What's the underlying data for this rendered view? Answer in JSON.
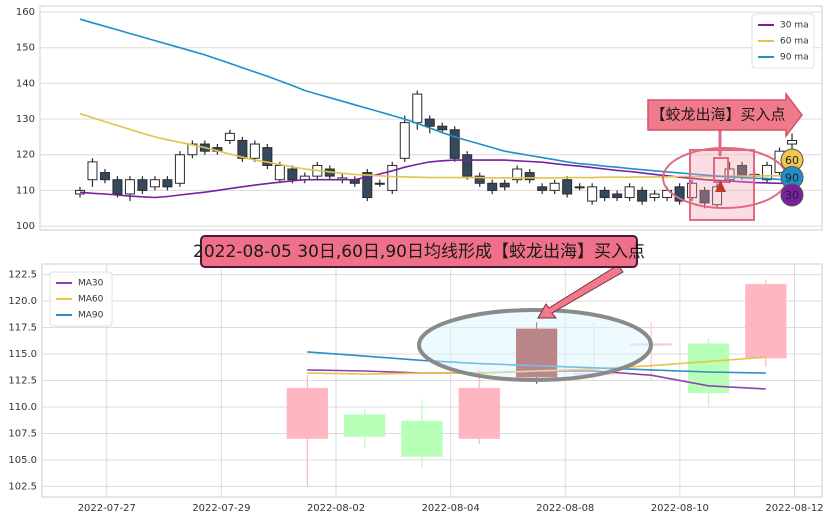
{
  "chart_data": [
    {
      "type": "candlestick",
      "xlim": [
        -3.2,
        59.4
      ],
      "ylim": [
        98.9,
        161.7
      ],
      "yticks": [
        100,
        110,
        120,
        130,
        140,
        150,
        160
      ],
      "grid": true,
      "up_color": "#ffffff",
      "down_color": "#34495e",
      "edge_color": "#2b2b2b",
      "legend": "upper right",
      "candles": {
        "open": [
          109,
          113,
          115,
          113,
          109,
          113,
          111,
          113,
          112,
          120,
          123,
          122,
          124,
          124,
          119,
          122,
          113,
          116,
          113,
          114,
          116,
          113,
          113,
          115,
          112,
          110,
          119,
          129,
          130,
          128,
          127,
          120,
          114,
          112,
          112,
          113,
          115,
          111,
          110,
          113,
          111,
          107,
          110,
          109,
          108,
          110,
          108,
          108,
          111,
          108,
          110,
          106,
          113,
          117,
          114,
          113,
          115,
          123
        ],
        "close": [
          110,
          118,
          113,
          109,
          113,
          110,
          113,
          111,
          120,
          123,
          121,
          121,
          126,
          119,
          123,
          117,
          117,
          113,
          114,
          117,
          114,
          113.5,
          112,
          108,
          112,
          117,
          129,
          137,
          128,
          127,
          119,
          114,
          112,
          110,
          111,
          116,
          113,
          110,
          112,
          109,
          111,
          111,
          108,
          108,
          111,
          107,
          109,
          110,
          107,
          112,
          106.5,
          111,
          116,
          114,
          114.5,
          117,
          121,
          124
        ],
        "high": [
          111,
          119,
          116,
          114,
          114,
          114,
          114,
          114,
          121,
          124,
          124,
          123,
          127,
          125,
          124,
          123,
          118,
          117,
          115,
          118,
          117,
          115,
          114,
          116,
          113,
          118,
          131,
          138,
          131,
          129,
          128,
          121,
          115,
          113,
          113,
          117,
          116,
          112,
          113,
          114,
          112,
          112,
          111,
          110,
          112,
          111,
          110,
          111,
          112,
          113,
          111,
          112,
          118,
          118,
          116,
          118,
          122,
          126
        ],
        "low": [
          108,
          111,
          112,
          108,
          107,
          109,
          110,
          110,
          111,
          119,
          120,
          120,
          123,
          118,
          118,
          116,
          112,
          112,
          112,
          113,
          113,
          112,
          111,
          107,
          111,
          109,
          118,
          127,
          126,
          126,
          118,
          113,
          111,
          109,
          110,
          112,
          112,
          109,
          109,
          108,
          110,
          106,
          107,
          107,
          107,
          106,
          107,
          107,
          106,
          107,
          105,
          105,
          112,
          113,
          113,
          112,
          114,
          121
        ]
      },
      "series": [
        {
          "name": "30 ma",
          "color": "#7b1fa2",
          "values": [
            109.5,
            109.2,
            109,
            108.7,
            108.4,
            108.2,
            108,
            108.3,
            108.7,
            109.1,
            109.5,
            110,
            110.5,
            111,
            111.5,
            111.9,
            112.3,
            112.7,
            113,
            113,
            113,
            113,
            113,
            113.8,
            114.6,
            115.5,
            116.5,
            117.3,
            118,
            118.3,
            118.5,
            118.5,
            118.5,
            118.5,
            118.5,
            118.3,
            118.1,
            117.9,
            117.5,
            117.1,
            116.8,
            116.4,
            116,
            115.6,
            115.3,
            114.9,
            114.5,
            114.1,
            113.7,
            113.4,
            113,
            112.8,
            112.6,
            112.4,
            112.2,
            112.1,
            112,
            112
          ]
        },
        {
          "name": "60 ma",
          "color": "#e3c34b",
          "values": [
            131.5,
            130.4,
            129.3,
            128.2,
            127.1,
            126,
            125,
            124.2,
            123.5,
            122.8,
            122,
            121.1,
            120.2,
            119.3,
            118.5,
            117.9,
            117.3,
            116.6,
            116,
            115.6,
            115.2,
            114.8,
            114.5,
            114.3,
            114.1,
            113.9,
            113.8,
            113.7,
            113.6,
            113.6,
            113.6,
            113.6,
            113.6,
            113.5,
            113.5,
            113.5,
            113.5,
            113.5,
            113.5,
            113.6,
            113.6,
            113.6,
            113.7,
            113.7,
            113.7,
            113.8,
            113.8,
            113.8,
            113.9,
            113.9,
            113.9,
            113.9,
            114,
            114,
            114,
            114.1,
            114.1,
            114.2
          ]
        },
        {
          "name": "90 ma",
          "color": "#1f8fc8",
          "values": [
            158,
            157,
            156,
            155,
            154,
            153,
            152,
            151,
            150,
            149,
            148,
            146.8,
            145.6,
            144.4,
            143.2,
            142,
            140.7,
            139.4,
            138,
            137,
            136,
            135,
            134,
            133,
            132,
            131,
            130,
            128.8,
            127.5,
            126.2,
            125,
            124,
            123,
            122,
            121,
            120.4,
            119.8,
            119.2,
            118.6,
            118,
            117.5,
            117.2,
            116.8,
            116.5,
            116.1,
            115.8,
            115.5,
            115.2,
            114.9,
            114.6,
            114.3,
            114,
            113.8,
            113.6,
            113.4,
            113.3,
            113.1,
            113
          ]
        }
      ],
      "callout": "【蛟龙出海】买入点",
      "badges": [
        {
          "label": "60",
          "color": "#f0c850"
        },
        {
          "label": "90",
          "color": "#1f8fc8"
        },
        {
          "label": "30",
          "color": "#7b1fa2"
        }
      ]
    },
    {
      "type": "candlestick",
      "xlim": [
        -1.13,
        12.48
      ],
      "ylim": [
        101.5,
        123.5
      ],
      "xticks": [
        {
          "value": 0,
          "label": "2022-07-27"
        },
        {
          "value": 2,
          "label": "2022-07-29"
        },
        {
          "value": 4,
          "label": "2022-08-02"
        },
        {
          "value": 6,
          "label": "2022-08-04"
        },
        {
          "value": 8,
          "label": "2022-08-08"
        },
        {
          "value": 10,
          "label": "2022-08-10"
        },
        {
          "value": 12,
          "label": "2022-08-12"
        }
      ],
      "yticks": [
        {
          "value": 102.5,
          "label": "102.5"
        },
        {
          "value": 105,
          "label": "105.0"
        },
        {
          "value": 107.5,
          "label": "107.5"
        },
        {
          "value": 110,
          "label": "110.0"
        },
        {
          "value": 112.5,
          "label": "112.5"
        },
        {
          "value": 115,
          "label": "115.0"
        },
        {
          "value": 117.5,
          "label": "117.5"
        },
        {
          "value": 120,
          "label": "120.0"
        },
        {
          "value": 122.5,
          "label": "122.5"
        }
      ],
      "grid": true,
      "legend": "upper left",
      "x": [
        3.5,
        4.5,
        5.5,
        6.5,
        7.5,
        8.5,
        9.5,
        10.5,
        11.5
      ],
      "candles": {
        "open": [
          107,
          107.2,
          108.7,
          107,
          112.8,
          113,
          115.8,
          111.3,
          114.6
        ],
        "close": [
          111.8,
          109.3,
          105.3,
          111.8,
          117.4,
          113.2,
          116,
          116,
          121.6
        ],
        "high": [
          113,
          109.8,
          110.7,
          113.5,
          118,
          118,
          118,
          116.5,
          122
        ],
        "low": [
          102.5,
          106.2,
          104.3,
          106.5,
          112.2,
          112.5,
          112.5,
          110,
          113.8
        ],
        "colors": [
          "#ffb6c1",
          "#b8ffb8",
          "#b8ffb8",
          "#ffb6c1",
          "#a52a2a",
          "#ffd6dc",
          "#ffc8d0",
          "#b8ffb8",
          "#ffb6c1"
        ]
      },
      "series": [
        {
          "name": "MA30",
          "color": "#8e44ad",
          "values": [
            113.5,
            113.4,
            113.2,
            113.2,
            113.4,
            113.4,
            113,
            112,
            111.7
          ]
        },
        {
          "name": "MA60",
          "color": "#e8c44a",
          "values": [
            113.2,
            113.1,
            113.2,
            113.2,
            113.4,
            113.6,
            113.9,
            114.3,
            114.7
          ]
        },
        {
          "name": "MA90",
          "color": "#2a90c8",
          "values": [
            115.2,
            114.8,
            114.4,
            114.1,
            113.9,
            113.7,
            113.5,
            113.3,
            113.2
          ]
        }
      ],
      "annotation": "2022-08-05 30日,60日,90日均线形成【蛟龙出海】买入点"
    }
  ]
}
